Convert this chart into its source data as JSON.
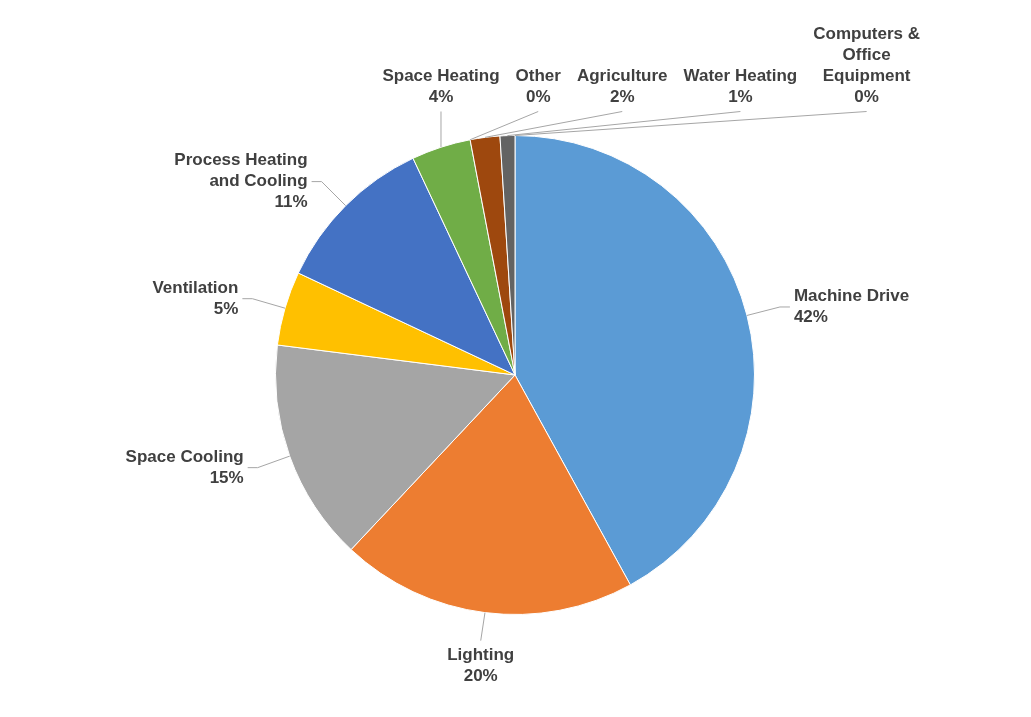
{
  "chart_data": {
    "type": "pie",
    "categories": [
      "Machine Drive",
      "Lighting",
      "Space Cooling",
      "Ventilation",
      "Process Heating and Cooling",
      "Space Heating",
      "Other",
      "Agriculture",
      "Water Heating",
      "Computers & Office Equipment"
    ],
    "values": [
      42,
      20,
      15,
      5,
      11,
      4,
      0,
      2,
      1,
      0
    ],
    "colors": [
      "#5b9bd5",
      "#ed7d31",
      "#a5a5a5",
      "#ffc000",
      "#4472c4",
      "#70ad47",
      "#255e91",
      "#9e480e",
      "#636363",
      "#997300"
    ],
    "value_labels": [
      "42%",
      "20%",
      "15%",
      "5%",
      "11%",
      "4%",
      "0%",
      "2%",
      "1%",
      "0%"
    ]
  }
}
